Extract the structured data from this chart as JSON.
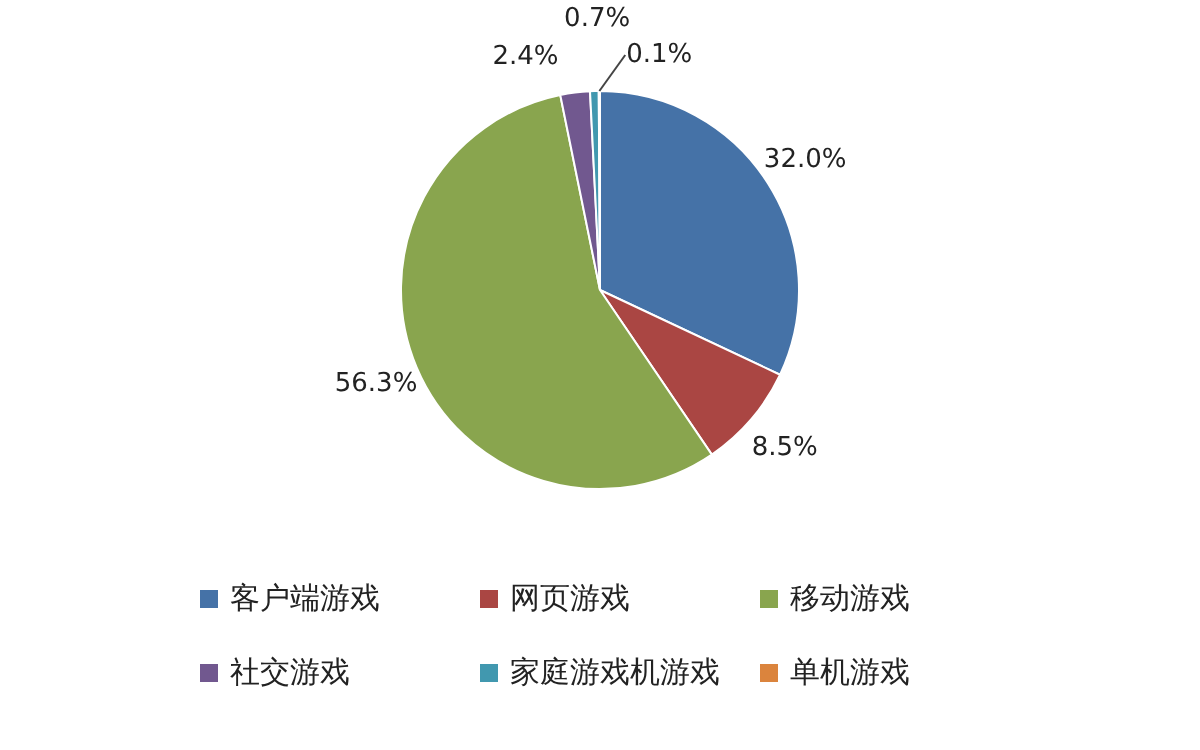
{
  "chart_data": {
    "type": "pie",
    "categories": [
      "客户端游戏",
      "网页游戏",
      "移动游戏",
      "社交游戏",
      "家庭游戏机游戏",
      "单机游戏"
    ],
    "values": [
      32.0,
      8.5,
      56.3,
      2.4,
      0.7,
      0.1
    ],
    "colors": [
      "#4572a7",
      "#aa4643",
      "#89a54e",
      "#71588f",
      "#4198af",
      "#db843d"
    ],
    "value_labels": [
      "32.0%",
      "8.5%",
      "56.3%",
      "2.4%",
      "0.7%",
      "0.1%"
    ],
    "legend": "bottom"
  }
}
